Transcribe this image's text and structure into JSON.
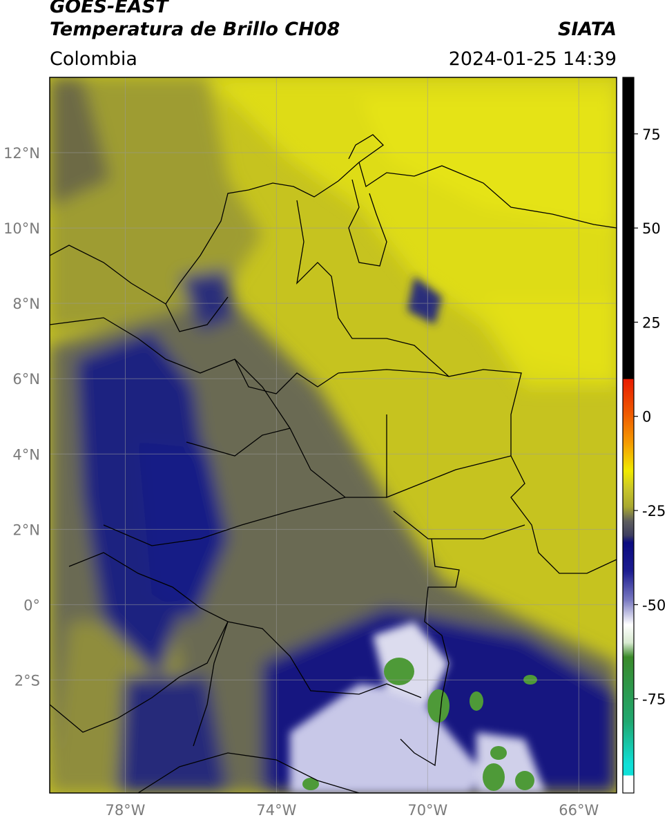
{
  "header": {
    "satellite": "GOES-EAST",
    "product": "Temperatura de Brillo CH08",
    "agency": "SIATA",
    "region": "Colombia",
    "timestamp": "2024-01-25 14:39"
  },
  "map": {
    "lon_range": [
      -80,
      -65
    ],
    "lat_range": [
      -5,
      14
    ],
    "lat_ticks": [
      {
        "value": 12,
        "label": "12°N"
      },
      {
        "value": 10,
        "label": "10°N"
      },
      {
        "value": 8,
        "label": "8°N"
      },
      {
        "value": 6,
        "label": "6°N"
      },
      {
        "value": 4,
        "label": "4°N"
      },
      {
        "value": 2,
        "label": "2°N"
      },
      {
        "value": 0,
        "label": "0°"
      },
      {
        "value": -2,
        "label": "2°S"
      }
    ],
    "lon_ticks": [
      {
        "value": -78,
        "label": "78°W"
      },
      {
        "value": -74,
        "label": "74°W"
      },
      {
        "value": -70,
        "label": "70°W"
      },
      {
        "value": -66,
        "label": "66°W"
      }
    ],
    "gridlines": true
  },
  "colorbar": {
    "range": [
      -100,
      90
    ],
    "ticks": [
      {
        "value": 75,
        "label": "75"
      },
      {
        "value": 50,
        "label": "50"
      },
      {
        "value": 25,
        "label": "25"
      },
      {
        "value": 0,
        "label": "0"
      },
      {
        "value": -25,
        "label": "-25"
      },
      {
        "value": -50,
        "label": "-50"
      },
      {
        "value": -75,
        "label": "-75"
      }
    ],
    "colors": {
      "black": "#000000",
      "red": "#e81c00",
      "orange": "#f59a00",
      "yellow": "#f0ea00",
      "olive": "#a9a930",
      "gray": "#555555",
      "navy": "#0c0c80",
      "white": "#ffffff",
      "green": "#3a8a2a",
      "cyan": "#10e0d8"
    }
  }
}
